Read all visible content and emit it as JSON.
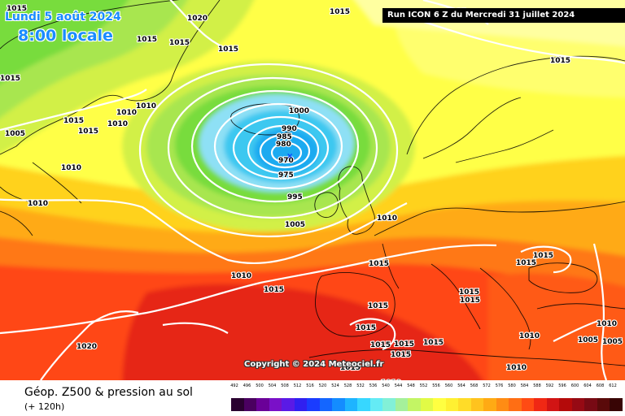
{
  "header": {
    "date_label": "Lundi 5 août 2024",
    "time_label": "8:00 locale",
    "run_label": "Run ICON 6 Z du Mercredi 31 juillet 2024"
  },
  "copyright": "Copyright © 2024 Meteociel.fr",
  "footer": {
    "title": "Géop. Z500 & pression au sol",
    "subtitle": "(+ 120h)"
  },
  "legend": {
    "values": [
      "492",
      "496",
      "500",
      "504",
      "508",
      "512",
      "516",
      "520",
      "524",
      "528",
      "532",
      "536",
      "540",
      "544",
      "548",
      "552",
      "556",
      "560",
      "564",
      "568",
      "572",
      "576",
      "580",
      "584",
      "588",
      "592",
      "596",
      "600",
      "604",
      "608",
      "612"
    ],
    "colors": [
      "#2a0030",
      "#4a0060",
      "#6a0098",
      "#7a10c8",
      "#5a1ae6",
      "#3020f0",
      "#1a3cff",
      "#1466ff",
      "#148cff",
      "#1eb4ff",
      "#37d7ff",
      "#64ebf5",
      "#82f0d7",
      "#a5f09b",
      "#c3f564",
      "#e1fa46",
      "#ffff41",
      "#fff032",
      "#ffdc28",
      "#ffc31e",
      "#ffaa14",
      "#ff8c14",
      "#ff6e14",
      "#ff4b14",
      "#f02814",
      "#d21414",
      "#b40a0a",
      "#960a14",
      "#780a14",
      "#5a0a0a",
      "#380505"
    ]
  },
  "map": {
    "colors": {
      "light_blue": "#8ee0f5",
      "cyan": "#3cc8f0",
      "blue": "#1eaaf0",
      "green": "#78dc3c",
      "light_green": "#a8e650",
      "yellow_green": "#d2f046",
      "yellow": "#ffff46",
      "gold": "#ffd21e",
      "orange": "#ffaa14",
      "dark_orange": "#ff7814",
      "red": "#ff4614",
      "deep_red": "#e62814"
    },
    "isobar_labels": [
      {
        "id": "a",
        "text": "1015"
      },
      {
        "id": "b",
        "text": "1020"
      },
      {
        "id": "c",
        "text": "1015"
      },
      {
        "id": "d",
        "text": "1015"
      },
      {
        "id": "e",
        "text": "1015"
      },
      {
        "id": "f",
        "text": "1015"
      },
      {
        "id": "g",
        "text": "1015"
      },
      {
        "id": "h",
        "text": "1015"
      },
      {
        "id": "i",
        "text": "1015"
      },
      {
        "id": "j",
        "text": "1015"
      },
      {
        "id": "k",
        "text": "1005"
      },
      {
        "id": "l",
        "text": "1015"
      },
      {
        "id": "m",
        "text": "1015"
      },
      {
        "id": "n",
        "text": "1010"
      },
      {
        "id": "o",
        "text": "1010"
      },
      {
        "id": "p",
        "text": "1010"
      },
      {
        "id": "q",
        "text": "1010"
      },
      {
        "id": "r",
        "text": "1010"
      },
      {
        "id": "s",
        "text": "1000"
      },
      {
        "id": "t",
        "text": "990"
      },
      {
        "id": "u",
        "text": "985"
      },
      {
        "id": "v",
        "text": "980"
      },
      {
        "id": "w",
        "text": "970"
      },
      {
        "id": "x",
        "text": "975"
      },
      {
        "id": "y",
        "text": "995"
      },
      {
        "id": "z",
        "text": "1005"
      },
      {
        "id": "aa",
        "text": "1010"
      },
      {
        "id": "ab",
        "text": "1015"
      },
      {
        "id": "ac",
        "text": "1010"
      },
      {
        "id": "ad",
        "text": "1015"
      },
      {
        "id": "ae",
        "text": "1015"
      },
      {
        "id": "af",
        "text": "1015"
      },
      {
        "id": "ag",
        "text": "1015"
      },
      {
        "id": "ah",
        "text": "1015"
      },
      {
        "id": "ai",
        "text": "1015"
      },
      {
        "id": "aj",
        "text": "1015"
      },
      {
        "id": "ak",
        "text": "1015"
      },
      {
        "id": "al",
        "text": "1015"
      },
      {
        "id": "am",
        "text": "1020"
      },
      {
        "id": "an",
        "text": "1015"
      },
      {
        "id": "ao",
        "text": "1010"
      },
      {
        "id": "ap",
        "text": "1010"
      },
      {
        "id": "aq",
        "text": "1010"
      },
      {
        "id": "ar",
        "text": "1010"
      },
      {
        "id": "as",
        "text": "1005"
      },
      {
        "id": "at",
        "text": "1005"
      },
      {
        "id": "au",
        "text": "1010"
      },
      {
        "id": "av",
        "text": "1015"
      }
    ]
  }
}
